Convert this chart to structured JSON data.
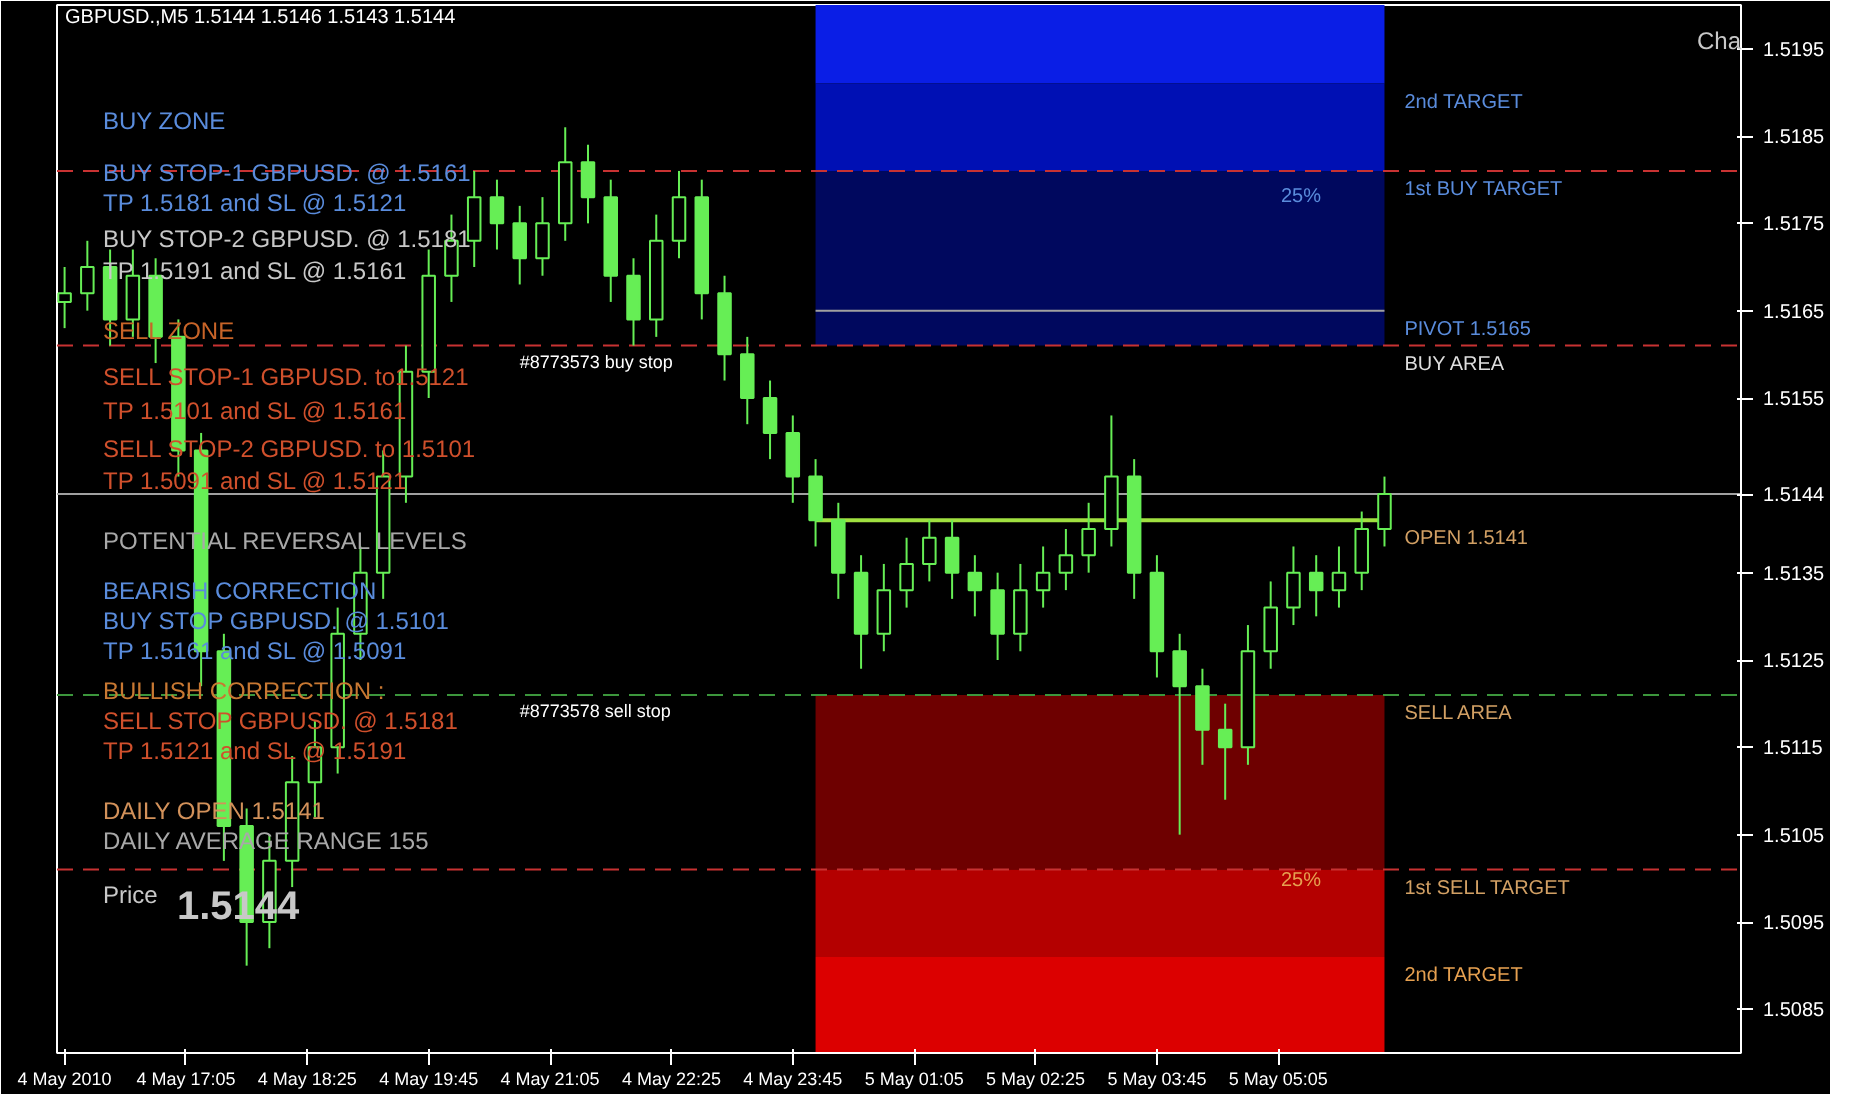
{
  "chart_data": {
    "type": "candlestick",
    "title": "GBPUSD.,M5  1.5144 1.5146 1.5143 1.5144",
    "color": "#66ee55",
    "x": [
      "2010-05-04T15:45",
      "2010-05-04T16:00",
      "2010-05-04T16:15",
      "2010-05-04T16:30",
      "2010-05-04T16:45",
      "2010-05-04T17:00",
      "2010-05-04T17:15",
      "2010-05-04T17:30",
      "2010-05-04T17:45",
      "2010-05-04T18:00",
      "2010-05-04T18:15",
      "2010-05-04T18:30",
      "2010-05-04T18:45",
      "2010-05-04T19:00",
      "2010-05-04T19:15",
      "2010-05-04T19:30",
      "2010-05-04T19:45",
      "2010-05-04T20:00",
      "2010-05-04T20:15",
      "2010-05-04T20:30",
      "2010-05-04T20:45",
      "2010-05-04T21:00",
      "2010-05-04T21:15",
      "2010-05-04T21:30",
      "2010-05-04T21:45",
      "2010-05-04T22:00",
      "2010-05-04T22:15",
      "2010-05-04T22:30",
      "2010-05-04T22:45",
      "2010-05-04T23:00",
      "2010-05-04T23:15",
      "2010-05-04T23:30",
      "2010-05-04T23:45",
      "2010-05-05T00:00",
      "2010-05-05T00:15",
      "2010-05-05T00:30",
      "2010-05-05T00:45",
      "2010-05-05T01:00",
      "2010-05-05T01:15",
      "2010-05-05T01:30",
      "2010-05-05T01:45",
      "2010-05-05T02:00",
      "2010-05-05T02:15",
      "2010-05-05T02:30",
      "2010-05-05T02:45",
      "2010-05-05T03:00",
      "2010-05-05T03:15",
      "2010-05-05T03:30",
      "2010-05-05T03:45",
      "2010-05-05T04:00",
      "2010-05-05T04:15",
      "2010-05-05T04:30",
      "2010-05-05T04:45",
      "2010-05-05T05:00",
      "2010-05-05T05:15",
      "2010-05-05T05:30",
      "2010-05-05T05:45",
      "2010-05-05T06:00",
      "2010-05-05T06:15"
    ],
    "ohlc": [
      [
        1.5166,
        1.517,
        1.5163,
        1.5167
      ],
      [
        1.5167,
        1.5173,
        1.5165,
        1.517
      ],
      [
        1.517,
        1.5172,
        1.5161,
        1.5164
      ],
      [
        1.5164,
        1.5172,
        1.5162,
        1.5169
      ],
      [
        1.5169,
        1.5171,
        1.5159,
        1.5162
      ],
      [
        1.5162,
        1.5164,
        1.5146,
        1.5149
      ],
      [
        1.5149,
        1.5151,
        1.5122,
        1.5126
      ],
      [
        1.5126,
        1.5128,
        1.5102,
        1.5106
      ],
      [
        1.5106,
        1.5108,
        1.509,
        1.5095
      ],
      [
        1.5095,
        1.5105,
        1.5092,
        1.5102
      ],
      [
        1.5102,
        1.5114,
        1.5099,
        1.5111
      ],
      [
        1.5111,
        1.5118,
        1.5107,
        1.5115
      ],
      [
        1.5115,
        1.5131,
        1.5112,
        1.5128
      ],
      [
        1.5128,
        1.5138,
        1.5125,
        1.5135
      ],
      [
        1.5135,
        1.5149,
        1.5132,
        1.5146
      ],
      [
        1.5146,
        1.5161,
        1.5143,
        1.5158
      ],
      [
        1.5158,
        1.5172,
        1.5155,
        1.5169
      ],
      [
        1.5169,
        1.5176,
        1.5166,
        1.5173
      ],
      [
        1.5173,
        1.5181,
        1.517,
        1.5178
      ],
      [
        1.5178,
        1.518,
        1.5172,
        1.5175
      ],
      [
        1.5175,
        1.5177,
        1.5168,
        1.5171
      ],
      [
        1.5171,
        1.5178,
        1.5169,
        1.5175
      ],
      [
        1.5175,
        1.5186,
        1.5173,
        1.5182
      ],
      [
        1.5182,
        1.5184,
        1.5175,
        1.5178
      ],
      [
        1.5178,
        1.518,
        1.5166,
        1.5169
      ],
      [
        1.5169,
        1.5171,
        1.5161,
        1.5164
      ],
      [
        1.5164,
        1.5176,
        1.5162,
        1.5173
      ],
      [
        1.5173,
        1.5181,
        1.5171,
        1.5178
      ],
      [
        1.5178,
        1.518,
        1.5164,
        1.5167
      ],
      [
        1.5167,
        1.5169,
        1.5157,
        1.516
      ],
      [
        1.516,
        1.5162,
        1.5152,
        1.5155
      ],
      [
        1.5155,
        1.5157,
        1.5148,
        1.5151
      ],
      [
        1.5151,
        1.5153,
        1.5143,
        1.5146
      ],
      [
        1.5146,
        1.5148,
        1.5138,
        1.5141
      ],
      [
        1.5141,
        1.5143,
        1.5132,
        1.5135
      ],
      [
        1.5135,
        1.5137,
        1.5124,
        1.5128
      ],
      [
        1.5128,
        1.5136,
        1.5126,
        1.5133
      ],
      [
        1.5133,
        1.5139,
        1.5131,
        1.5136
      ],
      [
        1.5136,
        1.5141,
        1.5134,
        1.5139
      ],
      [
        1.5139,
        1.5141,
        1.5132,
        1.5135
      ],
      [
        1.5135,
        1.5137,
        1.513,
        1.5133
      ],
      [
        1.5133,
        1.5135,
        1.5125,
        1.5128
      ],
      [
        1.5128,
        1.5136,
        1.5126,
        1.5133
      ],
      [
        1.5133,
        1.5138,
        1.5131,
        1.5135
      ],
      [
        1.5135,
        1.514,
        1.5133,
        1.5137
      ],
      [
        1.5137,
        1.5143,
        1.5135,
        1.514
      ],
      [
        1.514,
        1.5153,
        1.5138,
        1.5146
      ],
      [
        1.5146,
        1.5148,
        1.5132,
        1.5135
      ],
      [
        1.5135,
        1.5137,
        1.5123,
        1.5126
      ],
      [
        1.5126,
        1.5128,
        1.5105,
        1.5122
      ],
      [
        1.5122,
        1.5124,
        1.5113,
        1.5117
      ],
      [
        1.5117,
        1.512,
        1.5109,
        1.5115
      ],
      [
        1.5115,
        1.5129,
        1.5113,
        1.5126
      ],
      [
        1.5126,
        1.5134,
        1.5124,
        1.5131
      ],
      [
        1.5131,
        1.5138,
        1.5129,
        1.5135
      ],
      [
        1.5135,
        1.5137,
        1.513,
        1.5133
      ],
      [
        1.5133,
        1.5138,
        1.5131,
        1.5135
      ],
      [
        1.5135,
        1.5142,
        1.5133,
        1.514
      ],
      [
        1.514,
        1.5146,
        1.5138,
        1.5144
      ]
    ],
    "xlim": [
      "2010-05-04T15:40",
      "2010-05-05T10:10"
    ],
    "xticks": [
      {
        "value": "2010-05-04T15:45",
        "label": "4 May 2010"
      },
      {
        "value": "2010-05-04T17:05",
        "label": "4 May 17:05"
      },
      {
        "value": "2010-05-04T18:25",
        "label": "4 May 18:25"
      },
      {
        "value": "2010-05-04T19:45",
        "label": "4 May 19:45"
      },
      {
        "value": "2010-05-04T21:05",
        "label": "4 May 21:05"
      },
      {
        "value": "2010-05-04T22:25",
        "label": "4 May 22:25"
      },
      {
        "value": "2010-05-04T23:45",
        "label": "4 May 23:45"
      },
      {
        "value": "2010-05-05T01:05",
        "label": "5 May 01:05"
      },
      {
        "value": "2010-05-05T02:25",
        "label": "5 May 02:25"
      },
      {
        "value": "2010-05-05T03:45",
        "label": "5 May 03:45"
      },
      {
        "value": "2010-05-05T05:05",
        "label": "5 May 05:05"
      }
    ],
    "ylim": [
      1.508,
      1.52
    ],
    "yticks": [
      1.5195,
      1.5185,
      1.5175,
      1.5165,
      1.5155,
      1.5144,
      1.5135,
      1.5125,
      1.5115,
      1.5105,
      1.5095,
      1.5085
    ],
    "bands": [
      {
        "axis": "y",
        "from": 1.5191,
        "to": 1.52,
        "color": "#0a1ee6"
      },
      {
        "axis": "y",
        "from": 1.5181,
        "to": 1.5191,
        "color": "#0010b4",
        "label": "2nd TARGET"
      },
      {
        "axis": "y",
        "from": 1.5161,
        "to": 1.5181,
        "color": "#00085e"
      },
      {
        "axis": "y",
        "from": 1.5101,
        "to": 1.5121,
        "color": "#6e0000"
      },
      {
        "axis": "y",
        "from": 1.5091,
        "to": 1.5101,
        "color": "#b40000"
      },
      {
        "axis": "y",
        "from": 1.508,
        "to": 1.5091,
        "color": "#dc0000",
        "label": "2nd TARGET"
      }
    ],
    "ref_lines": [
      {
        "axis": "y",
        "value": 1.5181,
        "label": "1st BUY TARGET",
        "color": "#c83232",
        "line_style": "dashed"
      },
      {
        "axis": "y",
        "value": 1.5165,
        "label": "PIVOT 1.5165",
        "color": "#a0a0a0",
        "line_style": "solid"
      },
      {
        "axis": "y",
        "value": 1.5161,
        "label": "BUY AREA",
        "color": "#c83232",
        "line_style": "dashed"
      },
      {
        "axis": "y",
        "value": 1.5144,
        "color": "#a0a0a0",
        "line_style": "solid"
      },
      {
        "axis": "y",
        "value": 1.5141,
        "label": "OPEN 1.5141",
        "color": "#a0e040",
        "line_style": "solid"
      },
      {
        "axis": "y",
        "value": 1.5121,
        "label": "SELL AREA",
        "color": "#3c963c",
        "line_style": "dashed"
      },
      {
        "axis": "y",
        "value": 1.5101,
        "label": "1st SELL TARGET",
        "color": "#c83232",
        "line_style": "dashed"
      }
    ],
    "annotations": [
      "BUY ZONE",
      "BUY STOP-1  GBPUSD.  @ 1.5161",
      "TP 1.5181 and SL @  1.5121",
      "BUY STOP-2  GBPUSD.  @ 1.5181",
      "TP 1.5191 and SL @  1.5161",
      "SELL ZONE",
      "SELL STOP-1  GBPUSD.  to1.5121",
      "TP 1.5101 and SL @  1.5161",
      "SELL STOP-2  GBPUSD.  to 1.5101",
      "TP 1.5091 and SL @  1.5121",
      "POTENTIAL REVERSAL LEVELS",
      "BEARISH CORRECTION",
      "BUY STOP GBPUSD.  @   1.5101",
      "TP 1.5161  and SL @   1.5091",
      "BULLISH CORRECTION :",
      "SELL STOP GBPUSD.  @   1.5181",
      "TP 1.5121  and SL @   1.5191",
      "DAILY OPEN     1.5141",
      "DAILY AVERAGE RANGE  155",
      "Price",
      "1.5144",
      "Cha",
      "25%",
      "25%",
      {
        "text": "#8773573 buy stop",
        "x": "2010-05-04T20:45",
        "y": 1.5161
      },
      {
        "text": "#8773578 sell stop",
        "x": "2010-05-04T20:45",
        "y": 1.5121
      }
    ]
  }
}
